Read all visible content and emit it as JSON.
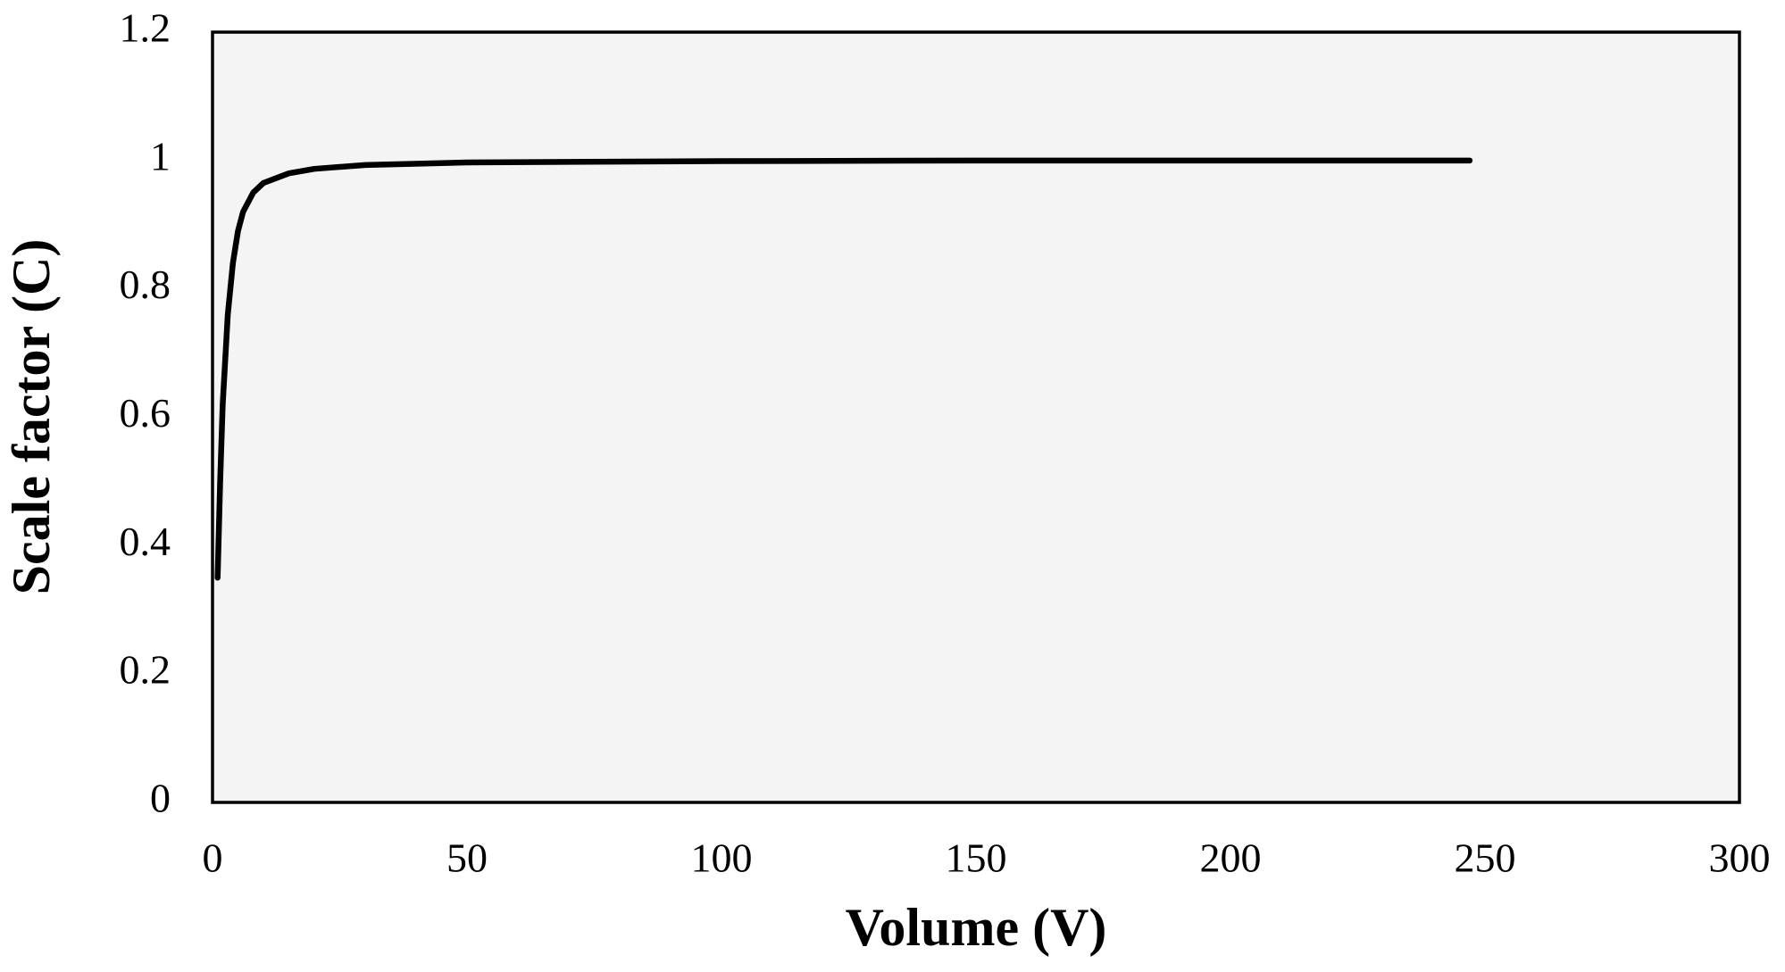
{
  "chart_data": {
    "type": "line",
    "x_label": "Volume (V)",
    "y_label": "Scale factor (C)",
    "series": [
      {
        "color": "#000000",
        "x": [
          1,
          1.5,
          2,
          3,
          4,
          5,
          6,
          8,
          10,
          15,
          20,
          30,
          50,
          100,
          150,
          200,
          247
        ],
        "values": [
          0.35,
          0.5,
          0.62,
          0.76,
          0.84,
          0.89,
          0.92,
          0.95,
          0.965,
          0.98,
          0.987,
          0.993,
          0.997,
          0.999,
          1.0,
          1.0,
          1.0
        ]
      }
    ],
    "xlim": [
      0,
      300
    ],
    "xticks": [
      0,
      50,
      100,
      150,
      200,
      250,
      300
    ],
    "ylim": [
      0,
      1.2
    ],
    "yticks": [
      0,
      0.2,
      0.4,
      0.6,
      0.8,
      1,
      1.2
    ],
    "plot_background": "#f4f4f4",
    "grid": false
  }
}
